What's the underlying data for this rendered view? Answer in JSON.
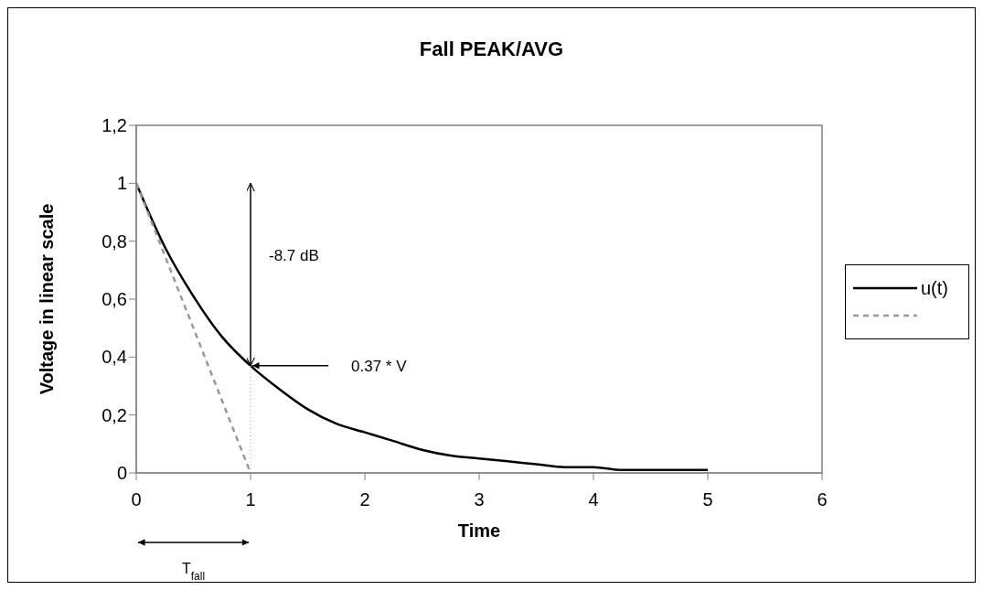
{
  "chart_data": {
    "type": "line",
    "title": "Fall PEAK/AVG",
    "xlabel": "Time",
    "ylabel": "Voltage in linear scale",
    "xlim": [
      0,
      6
    ],
    "xticks": [
      0,
      1,
      2,
      3,
      4,
      5,
      6
    ],
    "ylim": [
      0,
      1.2
    ],
    "yticks": [
      0,
      {
        "value": 0.2,
        "label": "0,2"
      },
      {
        "value": 0.4,
        "label": "0,4"
      },
      {
        "value": 0.6,
        "label": "0,6"
      },
      {
        "value": 0.8,
        "label": "0,8"
      },
      1,
      {
        "value": 1.2,
        "label": "1,2"
      }
    ],
    "legend": "right",
    "marker": "none",
    "series": [
      {
        "name": "u(t)",
        "color": "#000000",
        "line_style": "solid",
        "x": [
          0,
          0.25,
          0.5,
          0.75,
          1,
          1.25,
          1.5,
          1.75,
          2,
          2.25,
          2.5,
          2.75,
          3,
          3.25,
          3.5,
          3.75,
          4,
          4.25,
          4.5,
          4.75,
          5
        ],
        "values": [
          1,
          0.78,
          0.61,
          0.47,
          0.37,
          0.29,
          0.22,
          0.17,
          0.14,
          0.11,
          0.08,
          0.06,
          0.05,
          0.04,
          0.03,
          0.02,
          0.02,
          0.01,
          0.01,
          0.01,
          0.01
        ]
      },
      {
        "color": "#999999",
        "line_style": "dashed",
        "x": [
          0,
          1
        ],
        "values": [
          1,
          0
        ]
      },
      {
        "color": "#c8c8c8",
        "line_style": "dotted",
        "x": [
          1,
          1
        ],
        "values": [
          0,
          0.37
        ]
      }
    ],
    "annotations": [
      "-8.7 dB",
      "0.37 * V",
      "T$_{fall}$"
    ]
  }
}
